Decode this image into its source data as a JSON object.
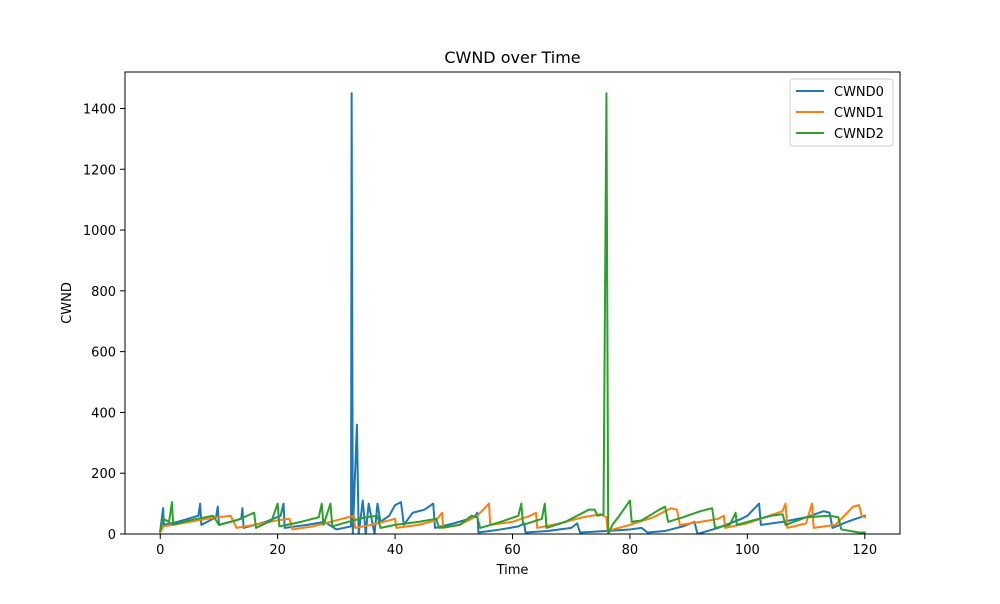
{
  "chart_data": {
    "type": "line",
    "title": "CWND over Time",
    "xlabel": "Time",
    "ylabel": "CWND",
    "xlim": [
      -6,
      126
    ],
    "ylim": [
      0,
      1520
    ],
    "xticks": [
      0,
      20,
      40,
      60,
      80,
      100,
      120
    ],
    "yticks": [
      0,
      200,
      400,
      600,
      800,
      1000,
      1200,
      1400
    ],
    "grid": false,
    "legend_position": "top-right",
    "series": [
      {
        "name": "CWND0",
        "color": "#1f77b4",
        "points": [
          [
            0,
            10
          ],
          [
            0.5,
            85
          ],
          [
            0.6,
            30
          ],
          [
            3,
            40
          ],
          [
            6.5,
            60
          ],
          [
            6.8,
            100
          ],
          [
            7,
            30
          ],
          [
            9.5,
            55
          ],
          [
            9.8,
            90
          ],
          [
            10,
            30
          ],
          [
            13.8,
            50
          ],
          [
            14,
            85
          ],
          [
            14.2,
            20
          ],
          [
            18,
            40
          ],
          [
            20.5,
            60
          ],
          [
            21,
            100
          ],
          [
            21.2,
            20
          ],
          [
            25,
            30
          ],
          [
            28,
            40
          ],
          [
            30,
            15
          ],
          [
            32.5,
            25
          ],
          [
            32.6,
            1450
          ],
          [
            32.8,
            0
          ],
          [
            33.5,
            360
          ],
          [
            33.8,
            0
          ],
          [
            34.5,
            110
          ],
          [
            35,
            0
          ],
          [
            35.5,
            100
          ],
          [
            36.5,
            0
          ],
          [
            37,
            100
          ],
          [
            37.5,
            40
          ],
          [
            39,
            60
          ],
          [
            40,
            95
          ],
          [
            41,
            105
          ],
          [
            41.5,
            30
          ],
          [
            43,
            70
          ],
          [
            45,
            80
          ],
          [
            46.5,
            100
          ],
          [
            46.8,
            20
          ],
          [
            50,
            35
          ],
          [
            53.5,
            55
          ],
          [
            54,
            70
          ],
          [
            54.2,
            5
          ],
          [
            58,
            15
          ],
          [
            61,
            25
          ],
          [
            62,
            35
          ],
          [
            62.2,
            5
          ],
          [
            66,
            10
          ],
          [
            70,
            20
          ],
          [
            71,
            35
          ],
          [
            71.5,
            5
          ],
          [
            76,
            10
          ],
          [
            80,
            15
          ],
          [
            82,
            20
          ],
          [
            83,
            5
          ],
          [
            86,
            10
          ],
          [
            89,
            25
          ],
          [
            91,
            40
          ],
          [
            91.5,
            0
          ],
          [
            95,
            20
          ],
          [
            99,
            50
          ],
          [
            100,
            60
          ],
          [
            102,
            100
          ],
          [
            102.3,
            30
          ],
          [
            106,
            40
          ],
          [
            110,
            55
          ],
          [
            113,
            75
          ],
          [
            114,
            70
          ],
          [
            114.5,
            20
          ],
          [
            117,
            40
          ],
          [
            120,
            60
          ]
        ]
      },
      {
        "name": "CWND1",
        "color": "#ff7f0e",
        "points": [
          [
            0,
            5
          ],
          [
            0.5,
            25
          ],
          [
            2,
            30
          ],
          [
            5,
            40
          ],
          [
            8,
            50
          ],
          [
            10,
            55
          ],
          [
            12,
            60
          ],
          [
            13,
            20
          ],
          [
            16,
            30
          ],
          [
            20,
            45
          ],
          [
            22,
            50
          ],
          [
            22.5,
            15
          ],
          [
            26,
            25
          ],
          [
            30,
            45
          ],
          [
            32,
            55
          ],
          [
            33,
            60
          ],
          [
            33.2,
            20
          ],
          [
            36,
            30
          ],
          [
            39,
            45
          ],
          [
            40,
            50
          ],
          [
            40.2,
            20
          ],
          [
            44,
            30
          ],
          [
            47,
            45
          ],
          [
            48,
            70
          ],
          [
            48.2,
            20
          ],
          [
            51,
            30
          ],
          [
            54,
            60
          ],
          [
            56,
            100
          ],
          [
            56.2,
            30
          ],
          [
            60,
            40
          ],
          [
            63,
            60
          ],
          [
            64,
            70
          ],
          [
            64.2,
            20
          ],
          [
            68,
            35
          ],
          [
            72,
            55
          ],
          [
            75,
            65
          ],
          [
            76,
            55
          ],
          [
            76.2,
            10
          ],
          [
            80,
            30
          ],
          [
            84,
            55
          ],
          [
            87,
            85
          ],
          [
            88,
            80
          ],
          [
            88.5,
            30
          ],
          [
            92,
            40
          ],
          [
            95,
            50
          ],
          [
            96,
            60
          ],
          [
            96.2,
            20
          ],
          [
            100,
            35
          ],
          [
            103,
            55
          ],
          [
            106,
            75
          ],
          [
            106.5,
            100
          ],
          [
            106.8,
            20
          ],
          [
            110,
            35
          ],
          [
            111,
            100
          ],
          [
            111.3,
            20
          ],
          [
            115,
            30
          ],
          [
            118,
            90
          ],
          [
            119,
            95
          ],
          [
            119.5,
            60
          ],
          [
            120,
            55
          ]
        ]
      },
      {
        "name": "CWND2",
        "color": "#2ca02c",
        "points": [
          [
            0,
            10
          ],
          [
            0.5,
            50
          ],
          [
            1.5,
            40
          ],
          [
            2,
            105
          ],
          [
            2.2,
            30
          ],
          [
            5,
            45
          ],
          [
            9,
            60
          ],
          [
            10,
            30
          ],
          [
            13,
            45
          ],
          [
            16,
            70
          ],
          [
            16.3,
            20
          ],
          [
            19,
            45
          ],
          [
            20,
            100
          ],
          [
            20.3,
            25
          ],
          [
            24,
            40
          ],
          [
            27,
            55
          ],
          [
            27.5,
            100
          ],
          [
            27.8,
            30
          ],
          [
            29,
            100
          ],
          [
            29.3,
            25
          ],
          [
            32,
            40
          ],
          [
            35,
            55
          ],
          [
            37,
            60
          ],
          [
            37.5,
            20
          ],
          [
            40,
            30
          ],
          [
            44,
            40
          ],
          [
            47,
            50
          ],
          [
            47.5,
            20
          ],
          [
            51,
            30
          ],
          [
            53,
            60
          ],
          [
            54,
            55
          ],
          [
            54.5,
            20
          ],
          [
            58,
            40
          ],
          [
            61,
            60
          ],
          [
            61.5,
            100
          ],
          [
            61.8,
            30
          ],
          [
            65,
            50
          ],
          [
            65.5,
            100
          ],
          [
            65.8,
            20
          ],
          [
            69,
            40
          ],
          [
            73,
            80
          ],
          [
            74,
            80
          ],
          [
            74.5,
            60
          ],
          [
            75.5,
            65
          ],
          [
            76,
            1450
          ],
          [
            76.3,
            0
          ],
          [
            77,
            30
          ],
          [
            78,
            55
          ],
          [
            80,
            110
          ],
          [
            80.3,
            40
          ],
          [
            82,
            45
          ],
          [
            85,
            80
          ],
          [
            86,
            90
          ],
          [
            86.5,
            40
          ],
          [
            89,
            55
          ],
          [
            92,
            75
          ],
          [
            94,
            85
          ],
          [
            94.5,
            20
          ],
          [
            97,
            30
          ],
          [
            98,
            70
          ],
          [
            98.2,
            30
          ],
          [
            101,
            45
          ],
          [
            104,
            60
          ],
          [
            106,
            65
          ],
          [
            106.5,
            30
          ],
          [
            110,
            55
          ],
          [
            114,
            60
          ],
          [
            115.5,
            55
          ],
          [
            116,
            15
          ],
          [
            119,
            5
          ],
          [
            120,
            5
          ]
        ]
      }
    ]
  }
}
